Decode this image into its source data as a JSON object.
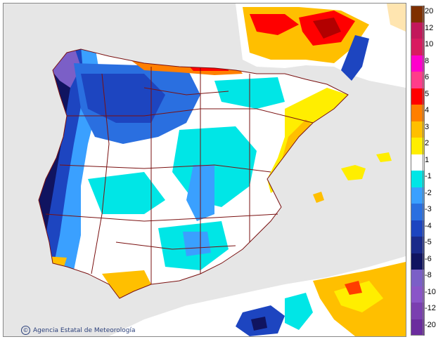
{
  "credit": {
    "symbol": "©",
    "text": "Agencia Estatal de Meteorología"
  },
  "legend": {
    "classes": [
      {
        "label": "20",
        "color": "#7f3000"
      },
      {
        "label": "12",
        "color": "#c2185b"
      },
      {
        "label": "10",
        "color": "#d81b60"
      },
      {
        "label": "8",
        "color": "#ff00cc"
      },
      {
        "label": "6",
        "color": "#ff3d8a"
      },
      {
        "label": "5",
        "color": "#ff0000"
      },
      {
        "label": "4",
        "color": "#ff7f00"
      },
      {
        "label": "3",
        "color": "#ffbf00"
      },
      {
        "label": "2",
        "color": "#ffee00"
      },
      {
        "label": "1",
        "color": "#ffffff"
      },
      {
        "label": "-1",
        "color": "#00e6e6"
      },
      {
        "label": "-2",
        "color": "#3aa0ff"
      },
      {
        "label": "-3",
        "color": "#2a6fe0"
      },
      {
        "label": "-4",
        "color": "#1d45c0"
      },
      {
        "label": "-5",
        "color": "#1a2a8a"
      },
      {
        "label": "-6",
        "color": "#101460"
      },
      {
        "label": "-8",
        "color": "#7b5fc7"
      },
      {
        "label": "-10",
        "color": "#8a55c8"
      },
      {
        "label": "-12",
        "color": "#7a3fb0"
      },
      {
        "label": "-20",
        "color": "#6b2c9e"
      }
    ]
  },
  "colors": {
    "sea": "#e6e6e6",
    "land": "#ffffff",
    "borders": "#7a1010"
  }
}
